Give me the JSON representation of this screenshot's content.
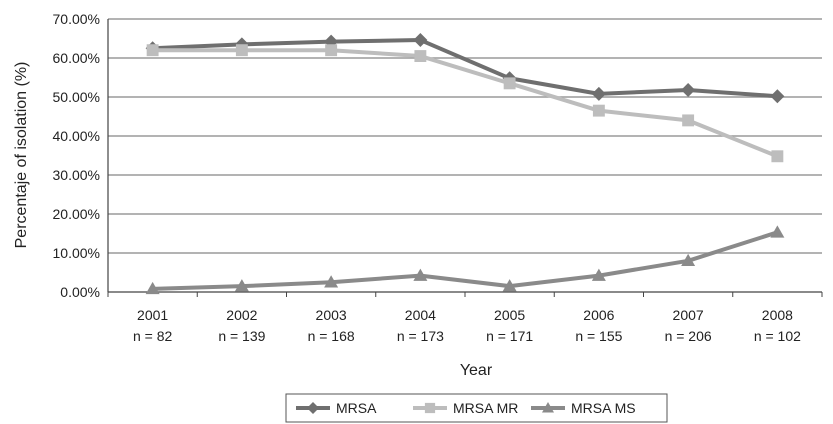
{
  "chart_data": {
    "type": "line",
    "title": "",
    "xlabel": "Year",
    "ylabel": "Percentaje of isolation (%)",
    "ylim": [
      0,
      70
    ],
    "y_ticks": [
      "0.00%",
      "10.00%",
      "20.00%",
      "30.00%",
      "40.00%",
      "50.00%",
      "60.00%",
      "70.00%"
    ],
    "categories": [
      "2001",
      "2002",
      "2003",
      "2004",
      "2005",
      "2006",
      "2007",
      "2008"
    ],
    "category_sublabels": [
      "n = 82",
      "n = 139",
      "n = 168",
      "n = 173",
      "n = 171",
      "n = 155",
      "n = 206",
      "n = 102"
    ],
    "grid": true,
    "legend_position": "bottom",
    "series": [
      {
        "name": "MRSA",
        "marker": "diamond",
        "color": "#6f6f6f",
        "values": [
          62.5,
          63.5,
          64.2,
          64.6,
          54.8,
          50.8,
          51.8,
          50.2
        ]
      },
      {
        "name": "MRSA MR",
        "marker": "square",
        "color": "#bdbdbd",
        "values": [
          62.0,
          62.0,
          62.0,
          60.5,
          53.5,
          46.5,
          44.0,
          34.8
        ]
      },
      {
        "name": "MRSA MS",
        "marker": "triangle",
        "color": "#8a8a8a",
        "values": [
          0.8,
          1.5,
          2.5,
          4.2,
          1.5,
          4.2,
          8.0,
          15.3
        ]
      }
    ]
  }
}
